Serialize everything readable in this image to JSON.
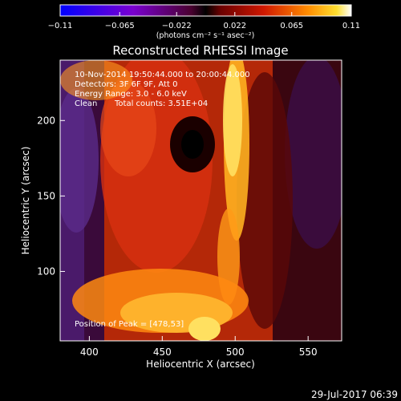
{
  "chart_data": {
    "type": "heatmap",
    "title": "Reconstructed RHESSI Image",
    "xlabel": "Heliocentric X (arcsec)",
    "ylabel": "Heliocentric Y (arcsec)",
    "xlim": [
      380,
      573
    ],
    "ylim": [
      54,
      240
    ],
    "x_ticks": [
      "400",
      "450",
      "500",
      "550"
    ],
    "y_ticks": [
      "100",
      "150",
      "200"
    ],
    "x_tick_values": [
      400,
      450,
      500,
      550
    ],
    "y_tick_values": [
      100,
      150,
      200
    ],
    "colorbar": {
      "min": -0.11,
      "max": 0.11,
      "tick_values": [
        -0.11,
        -0.065,
        -0.022,
        0.022,
        0.065,
        0.11
      ],
      "tick_labels": [
        "−0.11",
        "−0.065",
        "−0.022",
        "0.022",
        "0.065",
        "0.11"
      ],
      "unit_label": "(photons cm⁻² s⁻¹ asec⁻²)"
    },
    "annotations": [
      "10-Nov-2014 19:50:44.000 to 20:00:44.000",
      "Detectors: 3F 6F 9F, Att 0",
      "Energy Range: 3.0 - 6.0 keV",
      "Clean",
      "Total counts: 3.51E+04",
      "Position of Peak = [478,53]"
    ],
    "peak": [
      478,
      53
    ],
    "footer": "29-Jul-2017 06:39"
  }
}
